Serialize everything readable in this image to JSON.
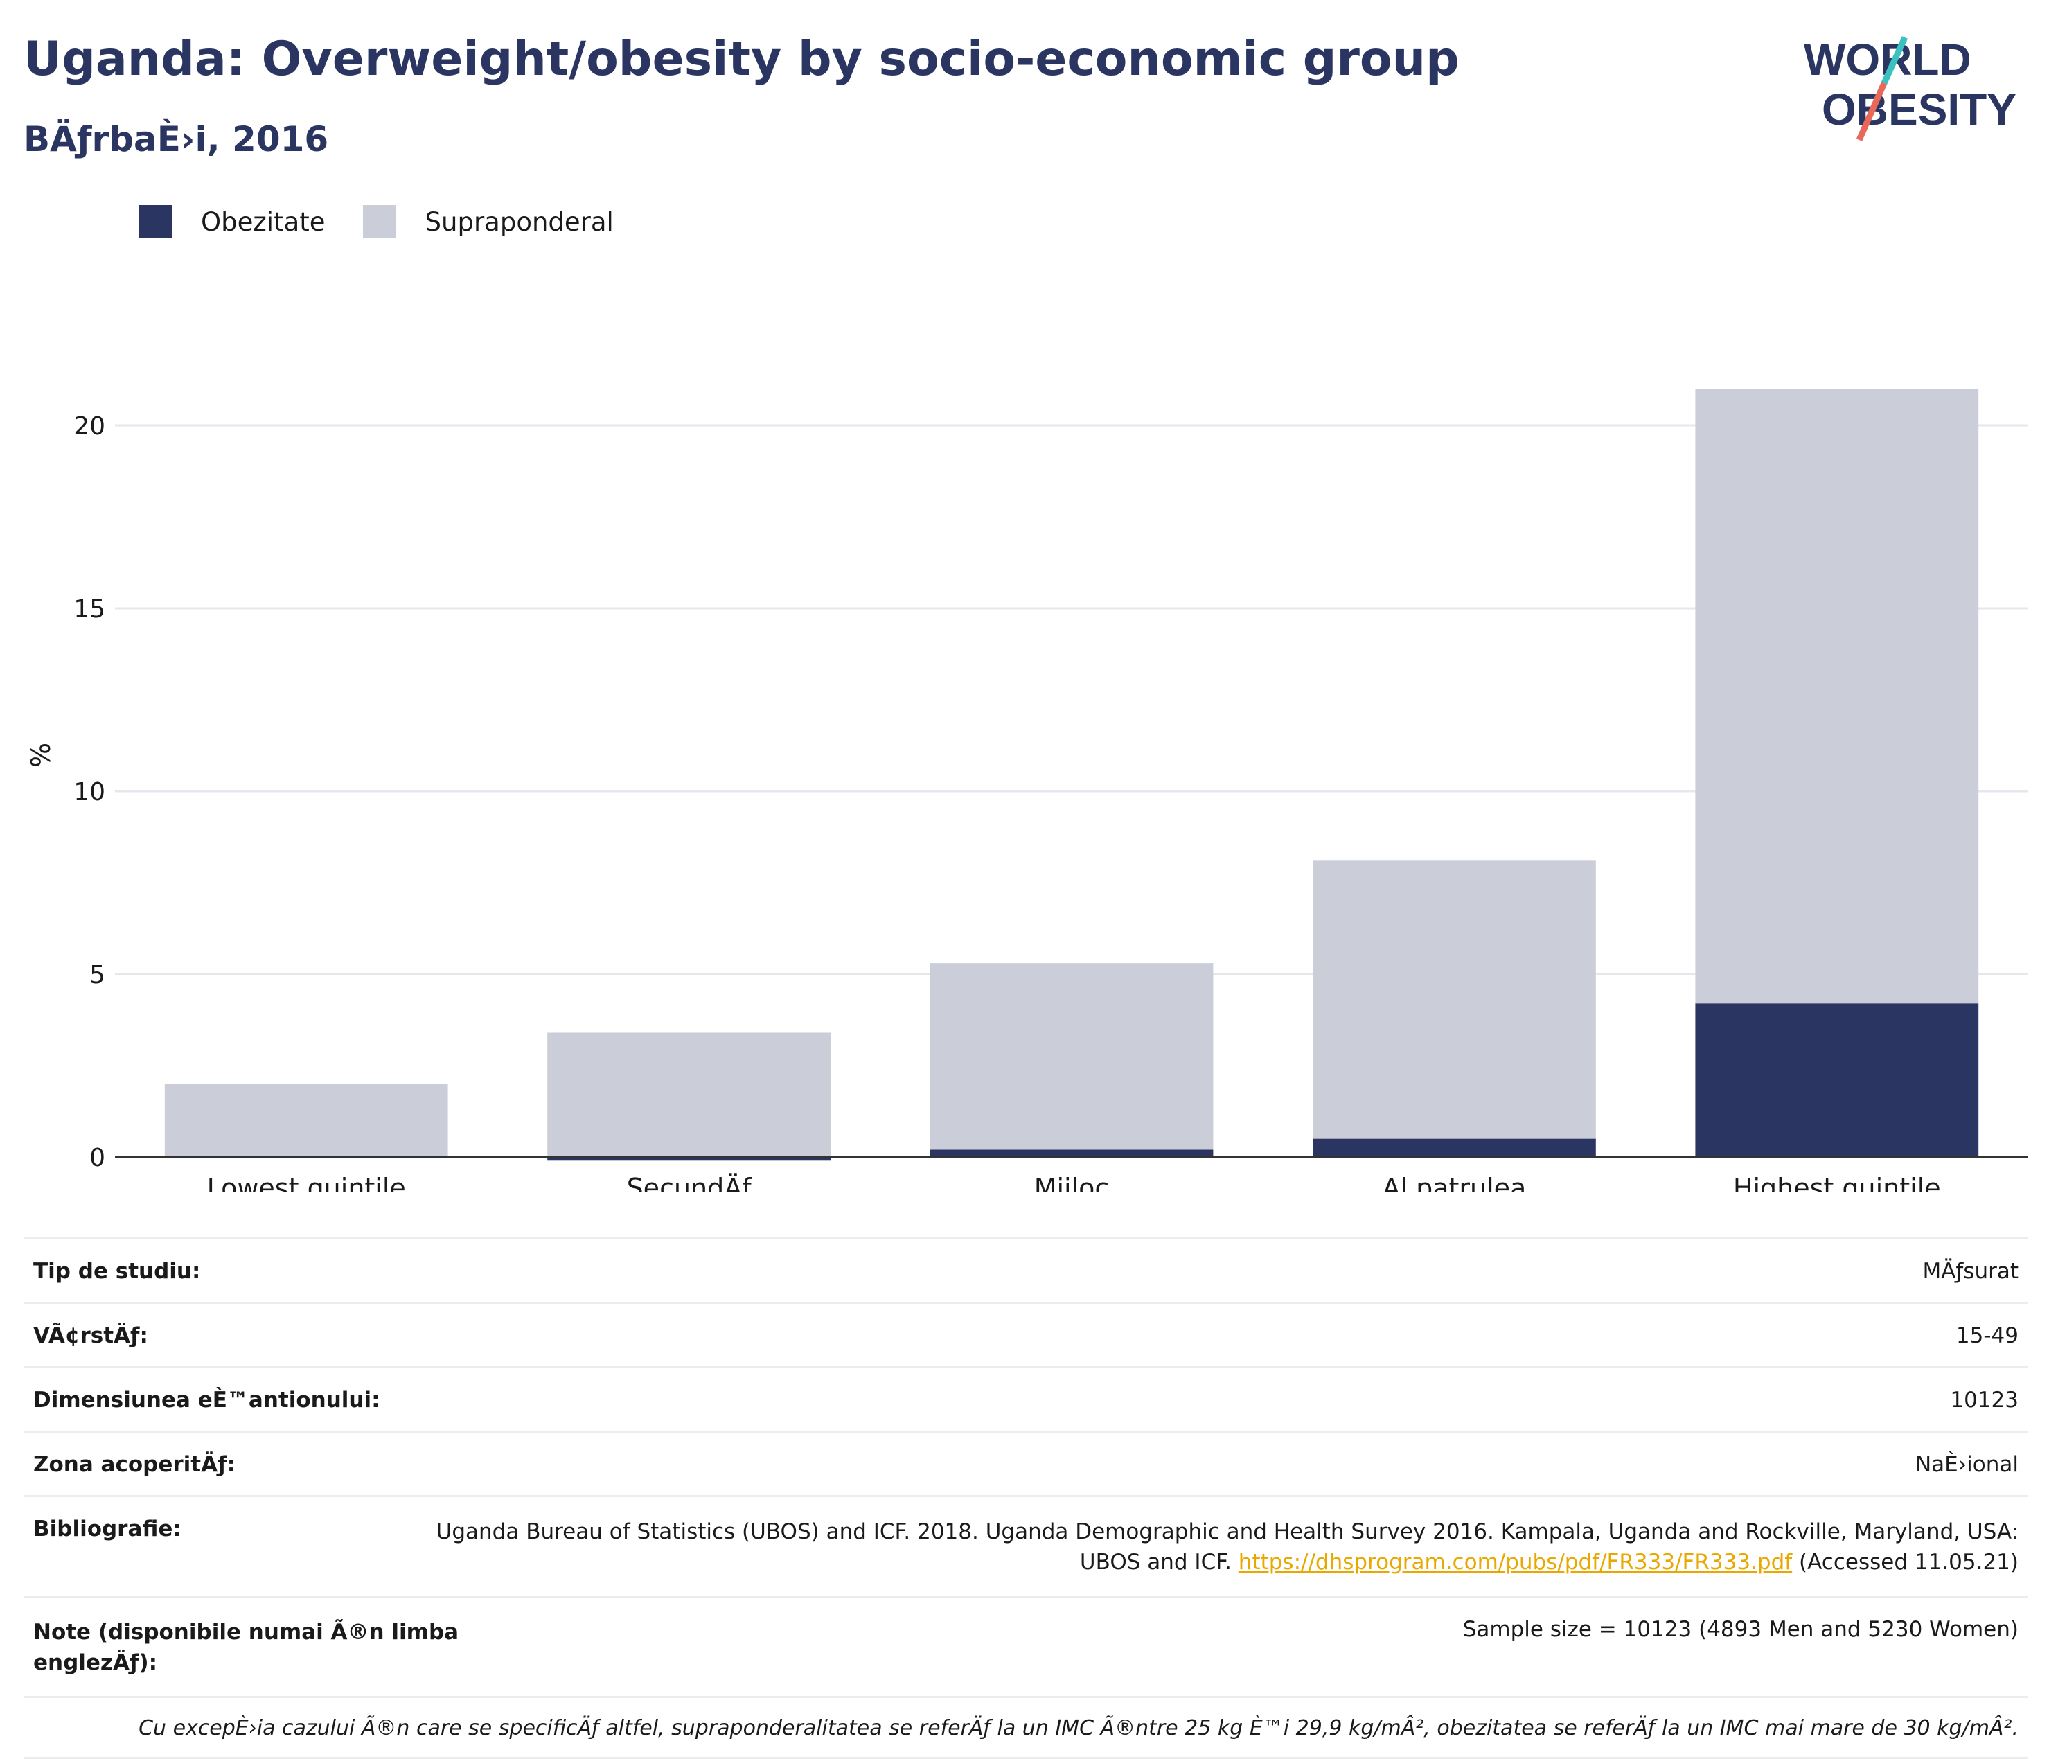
{
  "header": {
    "title": "Uganda: Overweight/obesity by socio-economic group",
    "subtitle": "BÄƒrbaÈ›i, 2016"
  },
  "logo": {
    "line1": "WORLD",
    "line2": "OBESITY",
    "colors": {
      "text": "#2a3561",
      "slash_teal": "#3cc1c1",
      "slash_red": "#e8685a"
    }
  },
  "colors": {
    "obesity": "#2a3561",
    "overweight": "#cbcdd8",
    "grid": "#e6e7ec",
    "axis": "#333333"
  },
  "chart_data": {
    "type": "bar",
    "stacked": true,
    "categories": [
      "Lowest quintile",
      "SecundÄƒ",
      "Mijloc",
      "Al patrulea",
      "Highest quintile"
    ],
    "series": [
      {
        "name": "Obezitate",
        "values": [
          0,
          -0.1,
          0.2,
          0.5,
          4.2
        ]
      },
      {
        "name": "Supraponderal",
        "values": [
          2.0,
          3.4,
          5.1,
          7.6,
          16.8
        ]
      }
    ],
    "ylabel": "%",
    "xlabel": "",
    "ylim": [
      -0.2,
      22
    ],
    "yticks": [
      0,
      5,
      10,
      15,
      20
    ],
    "grid": true,
    "legend_position": "top-left"
  },
  "info": {
    "rows": [
      {
        "label": "Tip de studiu:",
        "value": "MÄƒsurat"
      },
      {
        "label": "VÃ¢rstÄƒ:",
        "value": "15-49"
      },
      {
        "label": "Dimensiunea eÈ™antionului:",
        "value": "10123"
      },
      {
        "label": "Zona acoperitÄƒ:",
        "value": "NaÈ›ional"
      }
    ],
    "bibliography": {
      "label": "Bibliografie:",
      "text_before": "Uganda Bureau of Statistics (UBOS) and ICF. 2018. Uganda Demographic and Health Survey 2016. Kampala, Uganda and Rockville, Maryland, USA: UBOS and ICF. ",
      "link": "https://dhsprogram.com/pubs/pdf/FR333/FR333.pdf",
      "text_after": " (Accessed 11.05.21)"
    },
    "notes": {
      "label": "Note (disponibile numai Ã®n limba englezÄƒ):",
      "value": "Sample size = 10123 (4893 Men and 5230 Women)"
    },
    "footnote": "Cu excepÈ›ia cazului Ã®n care se specificÄƒ altfel, supraponderalitatea se referÄƒ la un IMC Ã®ntre 25 kg È™i 29,9 kg/mÂ², obezitatea se referÄƒ la un IMC mai mare de 30 kg/mÂ²."
  }
}
